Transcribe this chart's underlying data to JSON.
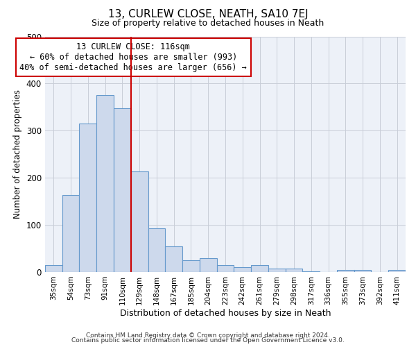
{
  "title": "13, CURLEW CLOSE, NEATH, SA10 7EJ",
  "subtitle": "Size of property relative to detached houses in Neath",
  "xlabel": "Distribution of detached houses by size in Neath",
  "ylabel": "Number of detached properties",
  "bar_labels": [
    "35sqm",
    "54sqm",
    "73sqm",
    "91sqm",
    "110sqm",
    "129sqm",
    "148sqm",
    "167sqm",
    "185sqm",
    "204sqm",
    "223sqm",
    "242sqm",
    "261sqm",
    "279sqm",
    "298sqm",
    "317sqm",
    "336sqm",
    "355sqm",
    "373sqm",
    "392sqm",
    "411sqm"
  ],
  "bar_values": [
    15,
    163,
    315,
    375,
    347,
    213,
    93,
    55,
    25,
    29,
    14,
    10,
    14,
    8,
    8,
    2,
    0,
    5,
    5,
    0,
    5
  ],
  "bar_color": "#cdd9ec",
  "bar_edge_color": "#6599cc",
  "vline_x": 4.5,
  "vline_color": "#cc0000",
  "annotation_title": "13 CURLEW CLOSE: 116sqm",
  "annotation_line1": "← 60% of detached houses are smaller (993)",
  "annotation_line2": "40% of semi-detached houses are larger (656) →",
  "annotation_box_facecolor": "#ffffff",
  "annotation_box_edgecolor": "#cc0000",
  "ylim": [
    0,
    500
  ],
  "plot_bg_color": "#edf1f8",
  "fig_bg_color": "#ffffff",
  "grid_color": "#c8cdd8",
  "footer1": "Contains HM Land Registry data © Crown copyright and database right 2024.",
  "footer2": "Contains public sector information licensed under the Open Government Licence v3.0."
}
